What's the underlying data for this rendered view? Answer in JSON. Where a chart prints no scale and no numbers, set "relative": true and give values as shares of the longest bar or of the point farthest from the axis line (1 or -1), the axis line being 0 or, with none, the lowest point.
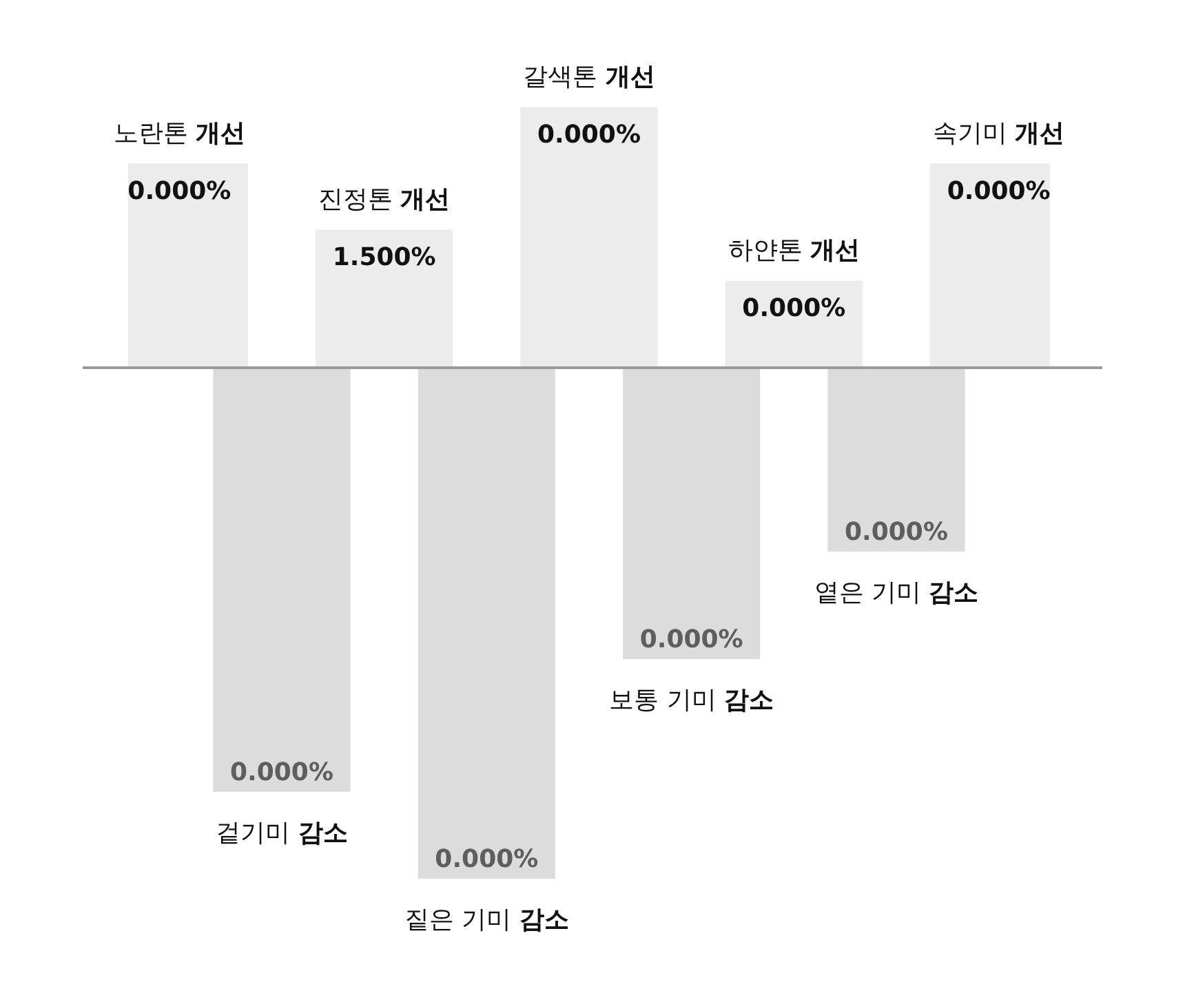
{
  "chart_data": {
    "type": "bar",
    "relative": true,
    "categories": [
      "노란톤 개선",
      "겉기미 감소",
      "진정톤 개선",
      "짙은 기미 감소",
      "갈색톤 개선",
      "보통 기미 감소",
      "하얀톤 개선",
      "옅은 기미 감소",
      "속기미 개선"
    ],
    "values": [
      0.4,
      -0.83,
      0.27,
      -1,
      0.51,
      -0.57,
      0.17,
      -0.36,
      0.4
    ],
    "colors": [
      "#ececec",
      "#dcdcdc",
      "#ececec",
      "#dcdcdc",
      "#ececec",
      "#dcdcdc",
      "#ececec",
      "#dcdcdc",
      "#ececec"
    ],
    "annotations": [
      "0.000%",
      "0.000%",
      "1.500%",
      "0.000%",
      "0.000%",
      "0.000%",
      "0.000%",
      "0.000%",
      "0.000%"
    ],
    "legend": false
  }
}
